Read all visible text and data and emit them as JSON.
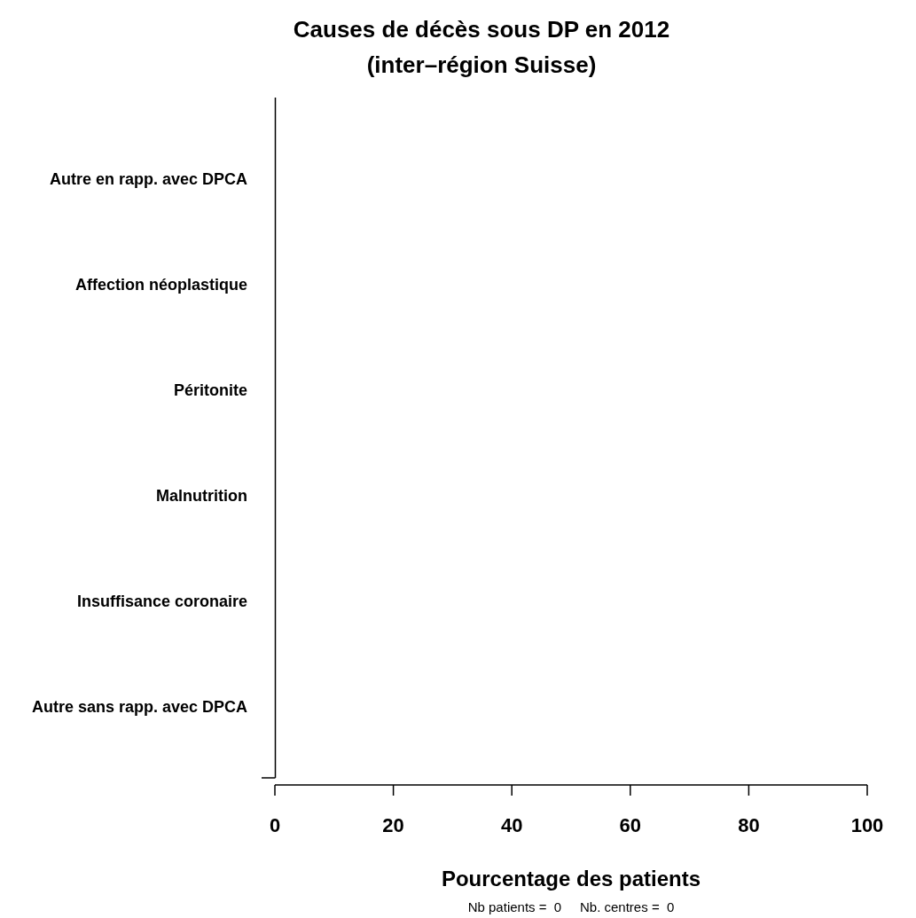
{
  "chart_data": {
    "type": "bar",
    "orientation": "horizontal",
    "title": "Causes de décès sous DP en 2012\n(inter–région Suisse)",
    "xlabel": "Pourcentage des patients",
    "categories": [
      "Autre en rapp. avec DPCA",
      "Affection néoplastique",
      "Péritonite",
      "Malnutrition",
      "Insuffisance coronaire",
      "Autre sans rapp. avec DPCA"
    ],
    "values": [
      0,
      0,
      0,
      0,
      0,
      0
    ],
    "xlim": [
      0,
      100
    ],
    "xticks": [
      0,
      20,
      40,
      60,
      80,
      100
    ],
    "grid": false,
    "annotations": [
      "Nb patients =  0     Nb. centres =  0"
    ]
  }
}
